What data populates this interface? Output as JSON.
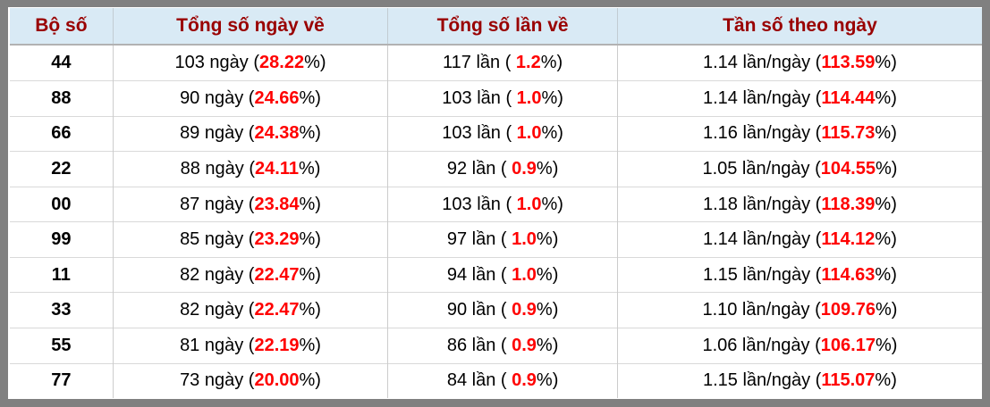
{
  "table": {
    "columns": [
      {
        "label": "Bộ số"
      },
      {
        "label": "Tổng số ngày về"
      },
      {
        "label": "Tổng số lần về"
      },
      {
        "label": "Tần số theo ngày"
      }
    ],
    "units": {
      "days": "ngày",
      "times": "lần",
      "freq": "lần/ngày"
    },
    "colors": {
      "frame_gray": "#808080",
      "header_bg": "#d9eaf5",
      "header_text": "#990000",
      "highlight_red": "#ff0000",
      "body_text": "#000000",
      "cell_border": "#cccccc"
    },
    "rows": [
      {
        "pair": "44",
        "days": "103",
        "days_pct": "28.22",
        "times": "117",
        "times_pct": "1.2",
        "freq": "1.14",
        "freq_pct": "113.59"
      },
      {
        "pair": "88",
        "days": "90",
        "days_pct": "24.66",
        "times": "103",
        "times_pct": "1.0",
        "freq": "1.14",
        "freq_pct": "114.44"
      },
      {
        "pair": "66",
        "days": "89",
        "days_pct": "24.38",
        "times": "103",
        "times_pct": "1.0",
        "freq": "1.16",
        "freq_pct": "115.73"
      },
      {
        "pair": "22",
        "days": "88",
        "days_pct": "24.11",
        "times": "92",
        "times_pct": "0.9",
        "freq": "1.05",
        "freq_pct": "104.55"
      },
      {
        "pair": "00",
        "days": "87",
        "days_pct": "23.84",
        "times": "103",
        "times_pct": "1.0",
        "freq": "1.18",
        "freq_pct": "118.39"
      },
      {
        "pair": "99",
        "days": "85",
        "days_pct": "23.29",
        "times": "97",
        "times_pct": "1.0",
        "freq": "1.14",
        "freq_pct": "114.12"
      },
      {
        "pair": "11",
        "days": "82",
        "days_pct": "22.47",
        "times": "94",
        "times_pct": "1.0",
        "freq": "1.15",
        "freq_pct": "114.63"
      },
      {
        "pair": "33",
        "days": "82",
        "days_pct": "22.47",
        "times": "90",
        "times_pct": "0.9",
        "freq": "1.10",
        "freq_pct": "109.76"
      },
      {
        "pair": "55",
        "days": "81",
        "days_pct": "22.19",
        "times": "86",
        "times_pct": "0.9",
        "freq": "1.06",
        "freq_pct": "106.17"
      },
      {
        "pair": "77",
        "days": "73",
        "days_pct": "20.00",
        "times": "84",
        "times_pct": "0.9",
        "freq": "1.15",
        "freq_pct": "115.07"
      }
    ]
  }
}
